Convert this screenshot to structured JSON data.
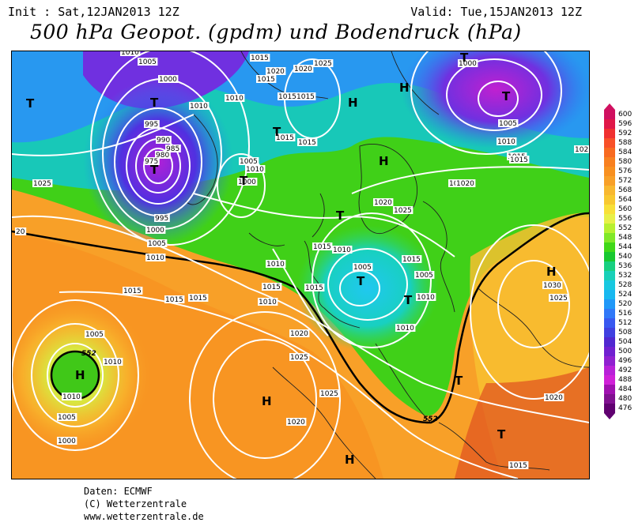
{
  "header": {
    "init": "Init : Sat,12JAN2013 12Z",
    "valid": "Valid: Tue,15JAN2013 12Z",
    "title": "500 hPa Geopot. (gpdm) und Bodendruck (hPa)"
  },
  "legend": {
    "levels": [
      "600",
      "596",
      "592",
      "588",
      "584",
      "580",
      "576",
      "572",
      "568",
      "564",
      "560",
      "556",
      "552",
      "548",
      "544",
      "540",
      "536",
      "532",
      "528",
      "524",
      "520",
      "516",
      "512",
      "508",
      "504",
      "500",
      "496",
      "492",
      "488",
      "484",
      "480",
      "476"
    ],
    "colors": [
      "#d01060",
      "#e01848",
      "#f03030",
      "#f85028",
      "#f86a20",
      "#f88020",
      "#f89020",
      "#f8a028",
      "#f8b830",
      "#f8c830",
      "#f8e038",
      "#e8f048",
      "#b8f030",
      "#80e828",
      "#40d818",
      "#18c830",
      "#18d080",
      "#18d0b8",
      "#18c8e0",
      "#18b8f0",
      "#2098f8",
      "#3078f8",
      "#3858f0",
      "#4040e0",
      "#5028d0",
      "#7020d0",
      "#9020d0",
      "#b820d8",
      "#d020d8",
      "#a010b0",
      "#801090",
      "#600070"
    ]
  },
  "map": {
    "pressure_labels": [
      "1010",
      "1005",
      "1000",
      "995",
      "990",
      "985",
      "980",
      "975",
      "995",
      "1000",
      "1005",
      "1010",
      "1025",
      "1015",
      "1020",
      "1015",
      "1010",
      "1025",
      "1020",
      "1015",
      "1015",
      "1015",
      "1010",
      "1005",
      "1010",
      "1000",
      "1015",
      "1020",
      "1025",
      "1020",
      "1015",
      "1010",
      "1015",
      "1005",
      "1010",
      "1005",
      "1010",
      "1015",
      "1015",
      "1015",
      "1015",
      "1010",
      "1020",
      "1025",
      "1020",
      "1025",
      "1030",
      "1020",
      "1015",
      "1000",
      "1005",
      "1010",
      "1015",
      "1020",
      "1015",
      "1025",
      "1010",
      "1005",
      "1000",
      "1005",
      "1010",
      "1010",
      "1015",
      "20",
      "102"
    ],
    "geopotential_labels": [
      "552",
      "552"
    ],
    "systems": [
      "T",
      "T",
      "T",
      "T",
      "T",
      "T",
      "T",
      "T",
      "T",
      "T",
      "T",
      "T",
      "H",
      "H",
      "H",
      "H",
      "H",
      "H",
      "H"
    ]
  },
  "credits": {
    "line1": "Daten: ECMWF",
    "line2": "(C) Wetterzentrale",
    "line3": "www.wetterzentrale.de"
  }
}
